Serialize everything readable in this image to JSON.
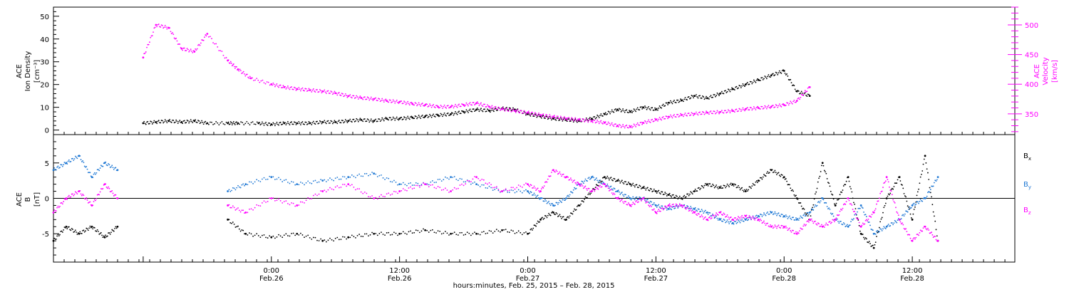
{
  "colors": {
    "black": "#000000",
    "magenta": "#ff00ff",
    "blue": "#1f78d4"
  },
  "chart_data": [
    {
      "type": "scatter",
      "panel": "top",
      "ylabel_left": [
        "ACE",
        "Ion Density",
        "[cm⁻³]"
      ],
      "ylabel_right": [
        "ACE",
        "Velocity",
        "[km/s]"
      ],
      "left_ticks": [
        "0",
        "10",
        "20",
        "30",
        "40",
        "50"
      ],
      "right_ticks": [
        "350",
        "400",
        "450",
        "500"
      ],
      "ylim_left": [
        -2,
        54
      ],
      "ylim_right": [
        315,
        530
      ],
      "series": [
        {
          "color": "black",
          "axis": "left",
          "x": [
            0.0,
            0.05,
            0.1,
            0.15,
            0.2,
            0.25,
            0.33,
            0.37,
            0.45,
            0.5,
            0.55,
            0.6,
            0.65,
            0.7,
            0.75,
            0.8,
            0.85,
            0.9,
            0.95,
            1.0,
            1.05,
            1.1,
            1.15,
            1.2,
            1.25,
            1.3,
            1.35,
            1.4,
            1.45,
            1.5,
            1.55,
            1.6,
            1.65,
            1.7,
            1.75,
            1.8,
            1.85,
            1.9,
            1.95,
            2.0,
            2.05,
            2.1,
            2.15,
            2.2,
            2.25,
            2.3,
            2.35,
            2.4,
            2.45,
            2.5,
            2.55,
            2.6
          ],
          "y": [
            3,
            3.5,
            4,
            3.5,
            4,
            3,
            3,
            3,
            3,
            2.5,
            3,
            3,
            3,
            3.5,
            3.5,
            4,
            4.5,
            4,
            5,
            5,
            5.5,
            6,
            6.5,
            7,
            8,
            9,
            8.5,
            9.5,
            9,
            7,
            6,
            5,
            4.5,
            4,
            5,
            7,
            9,
            8,
            10,
            9,
            12,
            13,
            15,
            14,
            16,
            18,
            20,
            22,
            24,
            26,
            17,
            15
          ]
        },
        {
          "color": "magenta",
          "axis": "right",
          "x": [
            0.0,
            0.05,
            0.1,
            0.15,
            0.2,
            0.25,
            0.33,
            0.37,
            0.42,
            0.5,
            0.55,
            0.6,
            0.65,
            0.7,
            0.75,
            0.8,
            0.85,
            0.9,
            0.95,
            1.0,
            1.05,
            1.1,
            1.15,
            1.2,
            1.25,
            1.3,
            1.35,
            1.4,
            1.45,
            1.5,
            1.55,
            1.6,
            1.65,
            1.7,
            1.75,
            1.8,
            1.85,
            1.9,
            1.95,
            2.0,
            2.05,
            2.1,
            2.15,
            2.2,
            2.25,
            2.3,
            2.35,
            2.4,
            2.45,
            2.5,
            2.55,
            2.6
          ],
          "y": [
            445,
            500,
            495,
            460,
            455,
            485,
            440,
            425,
            410,
            400,
            395,
            392,
            390,
            388,
            385,
            380,
            377,
            375,
            372,
            370,
            367,
            365,
            362,
            362,
            365,
            368,
            362,
            358,
            355,
            352,
            348,
            345,
            342,
            340,
            338,
            335,
            330,
            328,
            335,
            340,
            345,
            348,
            350,
            352,
            353,
            355,
            358,
            360,
            362,
            365,
            372,
            395
          ]
        }
      ]
    },
    {
      "type": "scatter",
      "panel": "bottom",
      "ylabel_left": [
        "ACE",
        "B",
        "[nT]"
      ],
      "left_ticks": [
        "-5",
        "0",
        "5"
      ],
      "ylim": [
        -9,
        9
      ],
      "x_ticks": [
        {
          "x": 0.0,
          "time": "",
          "date": ""
        },
        {
          "x": 0.5,
          "time": "0:00",
          "date": "Feb.26"
        },
        {
          "x": 1.0,
          "time": "12:00",
          "date": "Feb.26"
        },
        {
          "x": 1.5,
          "time": "0:00",
          "date": "Feb.27"
        },
        {
          "x": 2.0,
          "time": "12:00",
          "date": "Feb.27"
        },
        {
          "x": 2.5,
          "time": "0:00",
          "date": "Feb.28"
        },
        {
          "x": 3.0,
          "time": "12:00",
          "date": "Feb.28"
        }
      ],
      "xlabel": "hours:minutes, Feb. 25, 2015 – Feb. 28, 2015",
      "xlim": [
        -0.35,
        3.4
      ],
      "legend": [
        {
          "label": "B",
          "sub": "x",
          "color": "black"
        },
        {
          "label": "B",
          "sub": "y",
          "color": "blue"
        },
        {
          "label": "B",
          "sub": "z",
          "color": "magenta"
        }
      ],
      "series": [
        {
          "name": "Bx",
          "color": "black",
          "x": [
            -0.35,
            -0.3,
            -0.25,
            -0.2,
            -0.15,
            -0.1,
            0.33,
            0.4,
            0.5,
            0.6,
            0.7,
            0.8,
            0.9,
            1.0,
            1.1,
            1.2,
            1.3,
            1.4,
            1.5,
            1.55,
            1.6,
            1.65,
            1.7,
            1.75,
            1.8,
            1.85,
            1.9,
            1.95,
            2.0,
            2.05,
            2.1,
            2.15,
            2.2,
            2.25,
            2.3,
            2.35,
            2.4,
            2.45,
            2.5,
            2.55,
            2.6,
            2.65,
            2.7,
            2.75,
            2.8,
            2.85,
            2.9,
            2.95,
            3.0,
            3.05,
            3.1
          ],
          "y": [
            -6,
            -4,
            -5,
            -4,
            -5.5,
            -4,
            -3,
            -5,
            -5.5,
            -5,
            -6,
            -5.5,
            -5,
            -5,
            -4.5,
            -5,
            -5,
            -4.5,
            -5,
            -3,
            -2,
            -3,
            -1,
            1,
            3,
            2.5,
            2,
            1.5,
            1,
            0.5,
            0,
            1,
            2,
            1.5,
            2,
            1,
            2.5,
            4,
            3,
            0,
            -3,
            5,
            -1,
            3,
            -5,
            -7,
            0,
            3,
            -3,
            6,
            -6
          ]
        },
        {
          "name": "By",
          "color": "blue",
          "x": [
            -0.35,
            -0.3,
            -0.25,
            -0.2,
            -0.15,
            -0.1,
            0.33,
            0.4,
            0.5,
            0.6,
            0.7,
            0.8,
            0.9,
            1.0,
            1.1,
            1.2,
            1.3,
            1.4,
            1.5,
            1.55,
            1.6,
            1.65,
            1.7,
            1.75,
            1.8,
            1.85,
            1.9,
            1.95,
            2.0,
            2.05,
            2.1,
            2.15,
            2.2,
            2.25,
            2.3,
            2.35,
            2.4,
            2.45,
            2.5,
            2.55,
            2.6,
            2.65,
            2.7,
            2.75,
            2.8,
            2.85,
            2.9,
            2.95,
            3.0,
            3.05,
            3.1
          ],
          "y": [
            4,
            5,
            6,
            3,
            5,
            4,
            1,
            2,
            3,
            2,
            2.5,
            3,
            3.5,
            2,
            2,
            3,
            2,
            1,
            1,
            0,
            -1,
            0,
            2,
            3,
            2,
            1,
            0,
            0,
            -1,
            -1.5,
            -1,
            -1.5,
            -2,
            -3,
            -3.5,
            -3,
            -2.5,
            -2,
            -2.5,
            -3,
            -2,
            0,
            -3,
            -4,
            -1,
            -5,
            -4,
            -3,
            -1,
            0,
            3
          ]
        },
        {
          "name": "Bz",
          "color": "magenta",
          "x": [
            -0.35,
            -0.3,
            -0.25,
            -0.2,
            -0.15,
            -0.1,
            0.33,
            0.4,
            0.5,
            0.6,
            0.7,
            0.8,
            0.9,
            1.0,
            1.1,
            1.2,
            1.3,
            1.4,
            1.5,
            1.55,
            1.6,
            1.65,
            1.7,
            1.75,
            1.8,
            1.85,
            1.9,
            1.95,
            2.0,
            2.05,
            2.1,
            2.15,
            2.2,
            2.25,
            2.3,
            2.35,
            2.4,
            2.45,
            2.5,
            2.55,
            2.6,
            2.65,
            2.7,
            2.75,
            2.8,
            2.85,
            2.9,
            2.95,
            3.0,
            3.05,
            3.1
          ],
          "y": [
            -2,
            0,
            1,
            -1,
            2,
            0,
            -1,
            -2,
            0,
            -1,
            1,
            2,
            0,
            1,
            2,
            1,
            3,
            1,
            2,
            1,
            4,
            3,
            2,
            1,
            2,
            0,
            -1,
            0,
            -2,
            -1,
            -1,
            -2,
            -3,
            -2,
            -3,
            -2.5,
            -3,
            -4,
            -4,
            -5,
            -3,
            -4,
            -3,
            0,
            -4,
            -2,
            3,
            -3,
            -6,
            -4,
            -6
          ]
        }
      ]
    }
  ]
}
